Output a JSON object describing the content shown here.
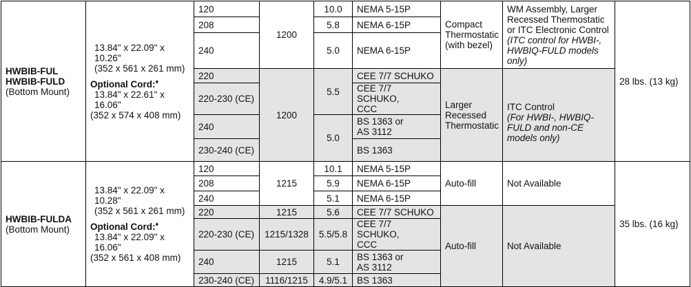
{
  "section1": {
    "model_line1": "HWBIB-FUL",
    "model_line2": "HWBIB-FULD",
    "mount": "(Bottom Mount)",
    "dims": "13.84\" x 22.09\" x 10.26\"",
    "dims_mm": "(352 x 561 x 261 mm)",
    "optional_cord_label": "Optional Cord:",
    "optional_cord_mark": "♦",
    "cord_dims": "13.84\" x 22.61\" x 16.06\"",
    "cord_dims_mm": "(352 x 574 x 408 mm)",
    "weight": "28 lbs. (13 kg)",
    "groupA": {
      "watts": "1200",
      "heater": "Compact Thermostatic (with bezel)",
      "options_plain": "WM Assembly, Larger Recessed Thermostatic or ITC Electronic Control",
      "options_italic": "(ITC control for HWBI-, HWBIQ-FULD models only)",
      "rows": [
        {
          "volts": "120",
          "amps": "10.0",
          "plug": "NEMA 5-15P"
        },
        {
          "volts": "208",
          "amps": "5.8",
          "plug": "NEMA 6-15P"
        },
        {
          "volts": "240",
          "amps": "5.0",
          "plug": "NEMA 6-15P"
        }
      ]
    },
    "groupB": {
      "watts": "1200",
      "heater": "Larger Recessed Thermostatic",
      "options_plain": "ITC Control",
      "options_italic": "(For HWBI-, HWBIQ-FULD and non-CE models only)",
      "amps_top": "5.5",
      "amps_bottom": "5.0",
      "rows": [
        {
          "volts": "220",
          "plug": "CEE 7/7 SCHUKO"
        },
        {
          "volts": "220-230 (CE)",
          "plug_line1": "CEE 7/7 SCHUKO,",
          "plug_line2": "CCC"
        },
        {
          "volts": "240",
          "plug_line1": "BS 1363 or",
          "plug_line2": "AS 3112"
        },
        {
          "volts": "230-240 (CE)",
          "plug": "BS 1363"
        }
      ]
    }
  },
  "section2": {
    "model": "HWBIB-FULDA",
    "mount": "(Bottom Mount)",
    "dims": "13.84\" x 22.09\" x 10.28\"",
    "dims_mm": "(352 x 561 x 261 mm)",
    "optional_cord_label": "Optional Cord:",
    "optional_cord_mark": "♦",
    "cord_dims": "13.84\" x 22.09\" x 16.06\"",
    "cord_dims_mm": "(352 x 561 x 408 mm)",
    "weight": "35 lbs. (16 kg)",
    "groupA": {
      "watts": "1215",
      "heater": "Auto-fill",
      "options": "Not Available",
      "rows": [
        {
          "volts": "120",
          "amps": "10.1",
          "plug": "NEMA 5-15P"
        },
        {
          "volts": "208",
          "amps": "5.9",
          "plug": "NEMA 6-15P"
        },
        {
          "volts": "240",
          "amps": "5.1",
          "plug": "NEMA 6-15P"
        }
      ]
    },
    "groupB": {
      "heater": "Auto-fill",
      "options": "Not Available",
      "rows": [
        {
          "volts": "220",
          "watts": "1215",
          "amps": "5.6",
          "plug": "CEE 7/7 SCHUKO"
        },
        {
          "volts": "220-230 (CE)",
          "watts": "1215/1328",
          "amps": "5.5/5.8",
          "plug_line1": "CEE 7/7 SCHUKO,",
          "plug_line2": "CCC"
        },
        {
          "volts": "240",
          "watts": "1215",
          "amps": "5.1",
          "plug_line1": "BS 1363 or",
          "plug_line2": "AS 3112"
        },
        {
          "volts": "230-240 (CE)",
          "watts": "1116/1215",
          "amps": "4.9/5.1",
          "plug": "BS 1363"
        }
      ]
    }
  }
}
